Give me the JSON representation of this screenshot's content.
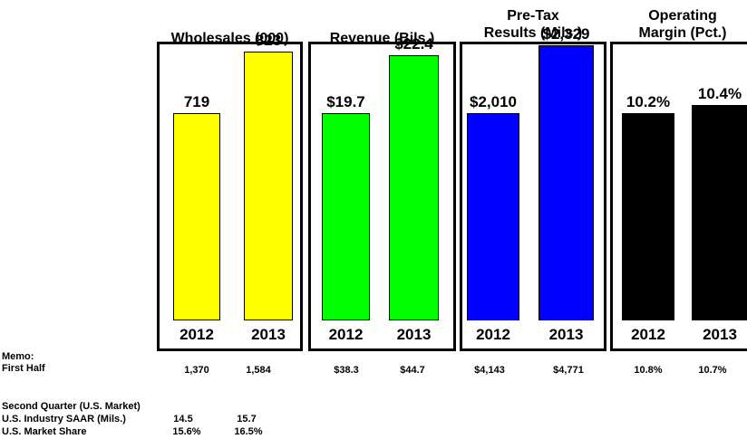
{
  "chart_data": [
    {
      "type": "bar",
      "title": "Wholesales (000)",
      "categories": [
        "2012",
        "2013"
      ],
      "values": [
        719,
        823
      ],
      "data_labels": [
        "719",
        "823"
      ],
      "color": "#ffff00"
    },
    {
      "type": "bar",
      "title": "Revenue (Bils.)",
      "categories": [
        "2012",
        "2013"
      ],
      "values": [
        19.7,
        22.4
      ],
      "data_labels": [
        "$19.7",
        "$22.4"
      ],
      "color": "#00ff00"
    },
    {
      "type": "bar",
      "title": "Pre-Tax Results (Mils.)",
      "title_lines": [
        "Pre-Tax",
        "Results (Mils.)"
      ],
      "categories": [
        "2012",
        "2013"
      ],
      "values": [
        2010,
        2329
      ],
      "data_labels": [
        "$2,010",
        "$2,329"
      ],
      "color": "#0000ff"
    },
    {
      "type": "bar",
      "title": "Operating Margin (Pct.)",
      "title_lines": [
        "Operating",
        "Margin (Pct.)"
      ],
      "categories": [
        "2012",
        "2013"
      ],
      "values": [
        10.2,
        10.4
      ],
      "data_labels": [
        "10.2%",
        "10.4%"
      ],
      "color": "#000000"
    }
  ],
  "memo": {
    "label": "Memo:",
    "first_half_label": "First Half",
    "first_half_values": [
      "1,370",
      "1,584",
      "$38.3",
      "$44.7",
      "$4,143",
      "$4,771",
      "10.8%",
      "10.7%"
    ],
    "second_quarter_label": "Second Quarter (U.S. Market)",
    "saar_label": "U.S. Industry SAAR (Mils.)",
    "saar_values": [
      "14.5",
      "15.7"
    ],
    "share_label": "U.S. Market Share",
    "share_values": [
      "15.6%",
      "16.5%"
    ]
  }
}
